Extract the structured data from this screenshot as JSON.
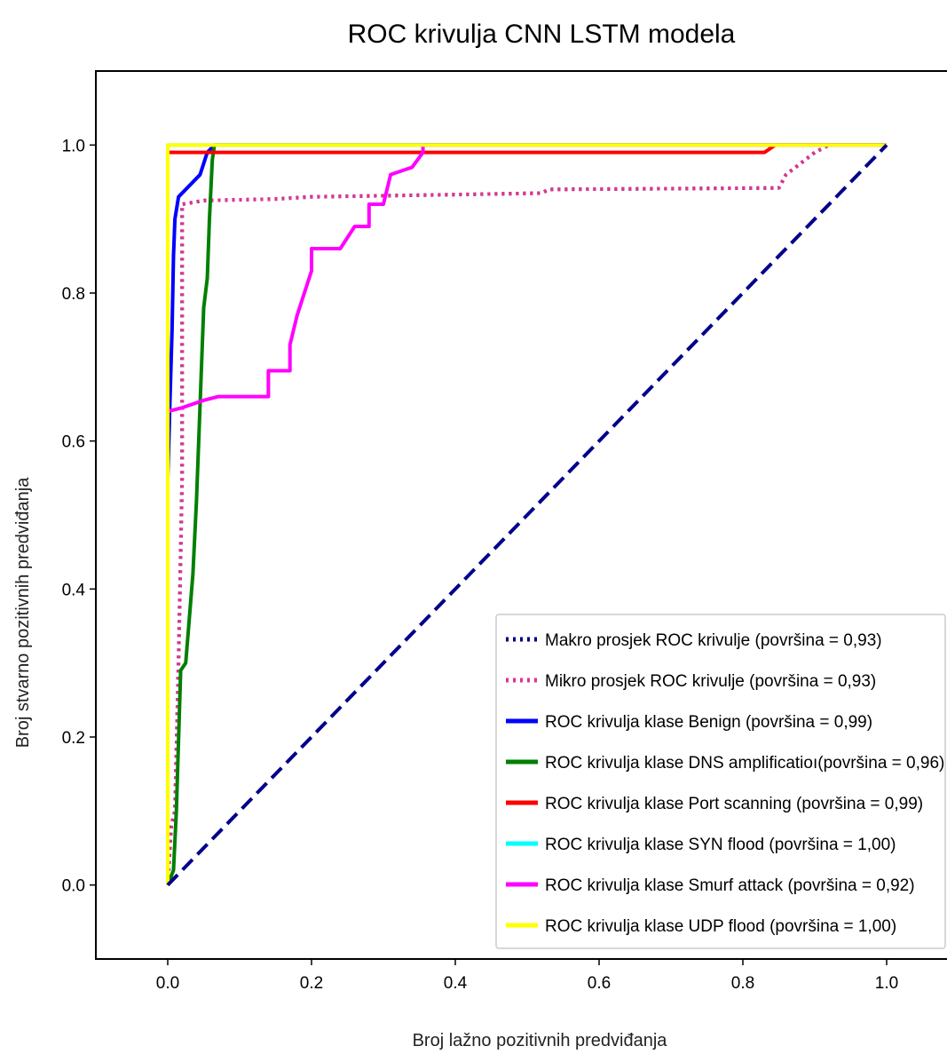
{
  "chart_data": {
    "type": "line",
    "title": "ROC krivulja CNN LSTM modela",
    "xlabel": "Broj lažno pozitivnih predviđanja",
    "ylabel": "Broj stvarno pozitivnih predviđanja",
    "xlim": [
      -0.1,
      1.1
    ],
    "ylim": [
      -0.1,
      1.1
    ],
    "xticks": [
      0.0,
      0.2,
      0.4,
      0.6,
      0.8,
      1.0
    ],
    "xtick_labels": [
      "0.0",
      "0.2",
      "0.4",
      "0.6",
      "0.8",
      "1.0"
    ],
    "yticks": [
      0.0,
      0.2,
      0.4,
      0.6,
      0.8,
      1.0
    ],
    "ytick_labels": [
      "0.0",
      "0.2",
      "0.4",
      "0.6",
      "0.8",
      "1.0"
    ],
    "grid": false,
    "legend_position": "lower-right",
    "series": [
      {
        "name": "Makro prosjek ROC krivulje (površina = 0,93)",
        "color": "#000080",
        "style": "dotted",
        "points": [
          [
            0,
            0
          ],
          [
            0.005,
            0.08
          ],
          [
            0.01,
            0.1
          ],
          [
            0.015,
            0.3
          ],
          [
            0.02,
            0.55
          ],
          [
            0.02,
            0.92
          ],
          [
            0.05,
            0.925
          ],
          [
            0.15,
            0.927
          ],
          [
            0.2,
            0.93
          ],
          [
            0.4,
            0.933
          ],
          [
            0.52,
            0.935
          ],
          [
            0.53,
            0.94
          ],
          [
            0.85,
            0.942
          ],
          [
            0.86,
            0.96
          ],
          [
            0.88,
            0.975
          ],
          [
            0.9,
            0.99
          ],
          [
            0.92,
            1.0
          ],
          [
            1.0,
            1.0
          ]
        ]
      },
      {
        "name": "Mikro prosjek ROC krivulje (površina = 0,93)",
        "color": "#e0338f",
        "style": "dotted",
        "points": [
          [
            0,
            0
          ],
          [
            0.005,
            0.08
          ],
          [
            0.01,
            0.1
          ],
          [
            0.015,
            0.3
          ],
          [
            0.02,
            0.55
          ],
          [
            0.02,
            0.92
          ],
          [
            0.05,
            0.925
          ],
          [
            0.15,
            0.927
          ],
          [
            0.2,
            0.93
          ],
          [
            0.4,
            0.933
          ],
          [
            0.52,
            0.935
          ],
          [
            0.53,
            0.94
          ],
          [
            0.85,
            0.942
          ],
          [
            0.86,
            0.96
          ],
          [
            0.88,
            0.975
          ],
          [
            0.9,
            0.99
          ],
          [
            0.92,
            1.0
          ],
          [
            1.0,
            1.0
          ]
        ]
      },
      {
        "name": "ROC krivulja klase   Benign (površina = 0,99)",
        "color": "#0000ff",
        "style": "solid",
        "points": [
          [
            0,
            0
          ],
          [
            0,
            0.55
          ],
          [
            0.003,
            0.65
          ],
          [
            0.006,
            0.75
          ],
          [
            0.008,
            0.85
          ],
          [
            0.01,
            0.9
          ],
          [
            0.015,
            0.93
          ],
          [
            0.03,
            0.945
          ],
          [
            0.045,
            0.96
          ],
          [
            0.05,
            0.975
          ],
          [
            0.055,
            0.99
          ],
          [
            0.065,
            1.0
          ],
          [
            1.0,
            1.0
          ]
        ]
      },
      {
        "name": "ROC krivulja klase  DNS amplification (površina = 0,96)",
        "color": "#008000",
        "style": "solid",
        "points": [
          [
            0,
            0
          ],
          [
            0.008,
            0.02
          ],
          [
            0.012,
            0.1
          ],
          [
            0.018,
            0.29
          ],
          [
            0.025,
            0.3
          ],
          [
            0.03,
            0.36
          ],
          [
            0.035,
            0.42
          ],
          [
            0.04,
            0.52
          ],
          [
            0.045,
            0.65
          ],
          [
            0.05,
            0.78
          ],
          [
            0.055,
            0.82
          ],
          [
            0.058,
            0.9
          ],
          [
            0.062,
            0.98
          ],
          [
            0.065,
            1.0
          ],
          [
            1.0,
            1.0
          ]
        ]
      },
      {
        "name": "ROC krivulja klase   Port scanning (površina = 0,99)",
        "color": "#ff0000",
        "style": "solid",
        "points": [
          [
            0,
            0
          ],
          [
            0,
            0.99
          ],
          [
            0.3,
            0.99
          ],
          [
            0.6,
            0.99
          ],
          [
            0.83,
            0.99
          ],
          [
            0.845,
            1.0
          ],
          [
            1.0,
            1.0
          ]
        ]
      },
      {
        "name": "ROC krivulja klase   SYN flood (površina = 1,00)",
        "color": "#00ffff",
        "style": "solid",
        "points": [
          [
            0,
            0
          ],
          [
            0,
            1.0
          ],
          [
            1.0,
            1.0
          ]
        ]
      },
      {
        "name": "ROC krivulja klase   Smurf attack (površina = 0,92)",
        "color": "#ff00ff",
        "style": "solid",
        "points": [
          [
            0,
            0
          ],
          [
            0,
            0.64
          ],
          [
            0.02,
            0.645
          ],
          [
            0.05,
            0.655
          ],
          [
            0.07,
            0.66
          ],
          [
            0.14,
            0.66
          ],
          [
            0.14,
            0.695
          ],
          [
            0.17,
            0.695
          ],
          [
            0.17,
            0.73
          ],
          [
            0.18,
            0.77
          ],
          [
            0.19,
            0.8
          ],
          [
            0.2,
            0.83
          ],
          [
            0.2,
            0.86
          ],
          [
            0.24,
            0.86
          ],
          [
            0.26,
            0.89
          ],
          [
            0.28,
            0.89
          ],
          [
            0.28,
            0.92
          ],
          [
            0.3,
            0.92
          ],
          [
            0.31,
            0.96
          ],
          [
            0.34,
            0.97
          ],
          [
            0.355,
            0.99
          ],
          [
            0.355,
            1.0
          ],
          [
            1.0,
            1.0
          ]
        ]
      },
      {
        "name": "ROC krivulja klase   UDP flood (površina = 1,00)",
        "color": "#ffff00",
        "style": "solid",
        "points": [
          [
            0,
            0
          ],
          [
            0,
            1.0
          ],
          [
            1.0,
            1.0
          ]
        ]
      },
      {
        "name": "",
        "color": "#00008b",
        "style": "dashed",
        "points": [
          [
            0,
            0
          ],
          [
            1,
            1
          ]
        ]
      }
    ],
    "legend": [
      {
        "label": "Makro prosjek ROC krivulje (površina = 0,93)",
        "color": "#000080",
        "style": "dotted"
      },
      {
        "label": "Mikro prosjek ROC krivulje  (površina = 0,93)",
        "color": "#e0338f",
        "style": "dotted"
      },
      {
        "label": "ROC krivulja klase   Benign (površina = 0,99)",
        "color": "#0000ff",
        "style": "solid"
      },
      {
        "label": "ROC krivulja klase  DNS amplificatioı(površina = 0,96)",
        "color": "#008000",
        "style": "solid"
      },
      {
        "label": "ROC krivulja klase   Port scanning (površina = 0,99)",
        "color": "#ff0000",
        "style": "solid"
      },
      {
        "label": "ROC krivulja klase   SYN flood (površina = 1,00)",
        "color": "#00ffff",
        "style": "solid"
      },
      {
        "label": "ROC krivulja klase   Smurf attack (površina = 0,92)",
        "color": "#ff00ff",
        "style": "solid"
      },
      {
        "label": "ROC krivulja klase   UDP flood (površina = 1,00)",
        "color": "#ffff00",
        "style": "solid"
      }
    ]
  }
}
